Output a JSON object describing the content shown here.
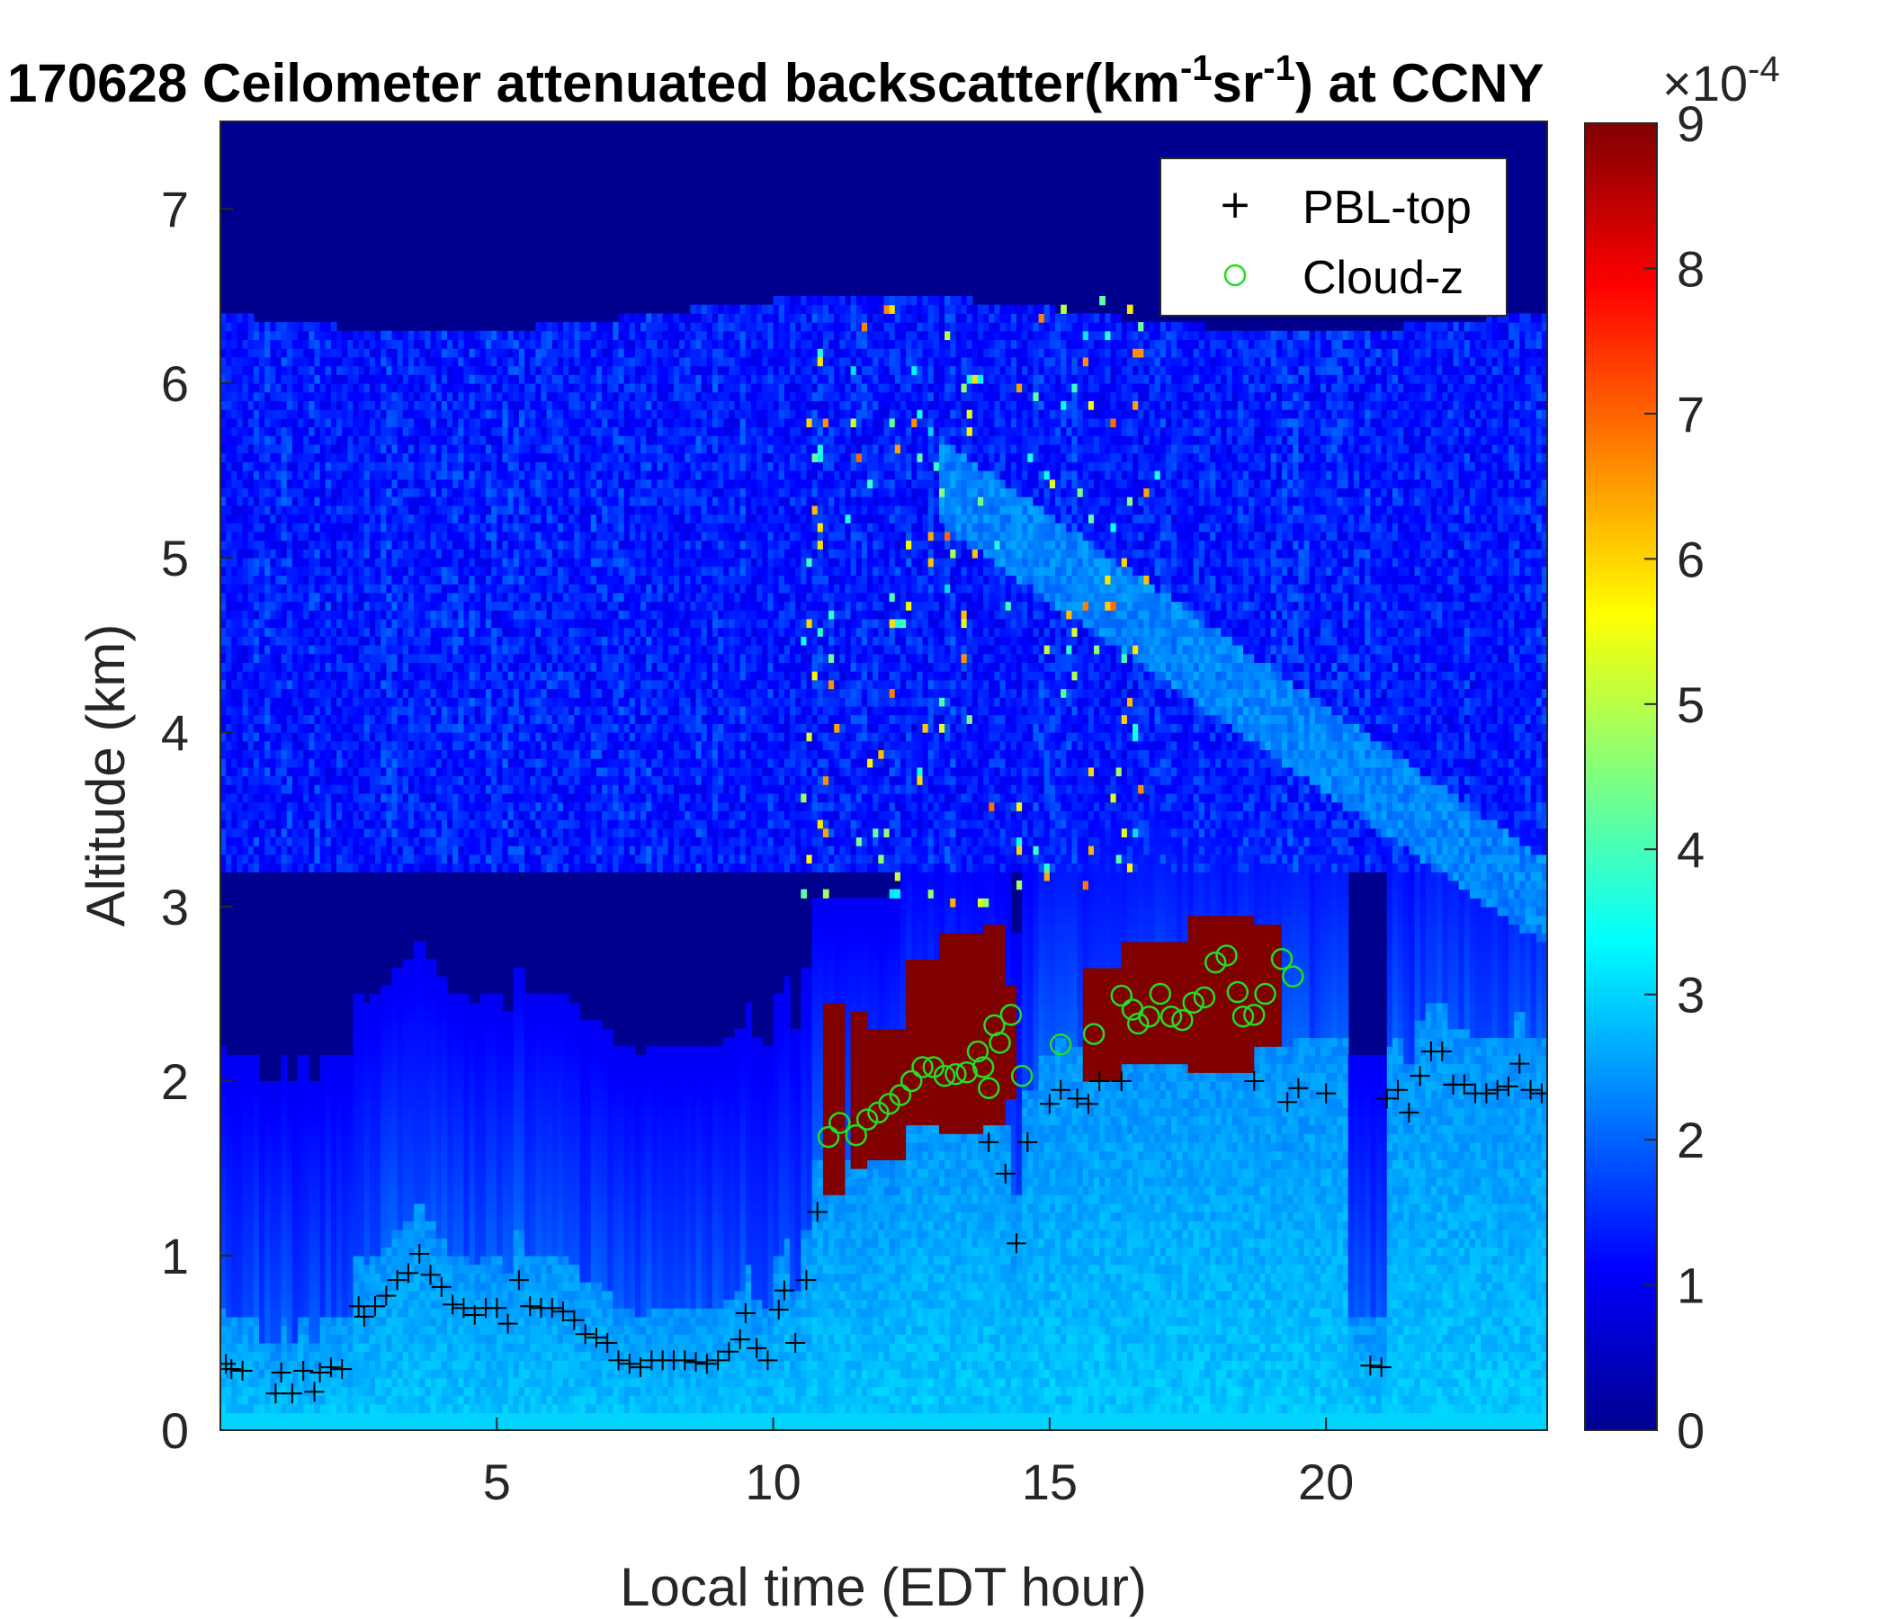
{
  "chart_data": {
    "type": "heatmap",
    "title_prefix": "170628 Ceilometer attenuated backscatter(km",
    "title_sup1": "-1",
    "title_mid": "sr",
    "title_sup2": "-1",
    "title_suffix": ") at CCNY",
    "xlabel": "Local time (EDT hour)",
    "ylabel": "Altitude (km)",
    "xlim": [
      0,
      24
    ],
    "ylim": [
      0,
      7.5
    ],
    "xticks": [
      "5",
      "10",
      "15",
      "20"
    ],
    "yticks": [
      "0",
      "1",
      "2",
      "3",
      "4",
      "5",
      "6",
      "7"
    ],
    "colorbar": {
      "colormap": "jet",
      "range": [
        0,
        9
      ],
      "ticks": [
        "0",
        "1",
        "2",
        "3",
        "4",
        "5",
        "6",
        "7",
        "8",
        "9"
      ],
      "exponent_base": "×10",
      "exponent": "-4"
    },
    "legend": {
      "placement": "top-right",
      "entries": [
        {
          "marker": "+",
          "label": "PBL-top",
          "color": "#000000"
        },
        {
          "marker": "o",
          "label": "Cloud-z",
          "color": "#22dd22"
        }
      ]
    },
    "series": [
      {
        "name": "PBL-top",
        "marker": "+",
        "color": "#000000",
        "points": [
          [
            0.1,
            0.38
          ],
          [
            0.2,
            0.35
          ],
          [
            0.4,
            0.34
          ],
          [
            1.0,
            0.21
          ],
          [
            1.1,
            0.33
          ],
          [
            1.3,
            0.21
          ],
          [
            1.5,
            0.34
          ],
          [
            1.7,
            0.22
          ],
          [
            1.8,
            0.33
          ],
          [
            2.0,
            0.36
          ],
          [
            2.2,
            0.35
          ],
          [
            2.5,
            0.71
          ],
          [
            2.6,
            0.65
          ],
          [
            2.8,
            0.71
          ],
          [
            3.0,
            0.77
          ],
          [
            3.2,
            0.86
          ],
          [
            3.4,
            0.9
          ],
          [
            3.6,
            1.01
          ],
          [
            3.8,
            0.89
          ],
          [
            4.0,
            0.82
          ],
          [
            4.2,
            0.72
          ],
          [
            4.4,
            0.7
          ],
          [
            4.6,
            0.66
          ],
          [
            4.8,
            0.7
          ],
          [
            5.0,
            0.7
          ],
          [
            5.2,
            0.61
          ],
          [
            5.4,
            0.86
          ],
          [
            5.6,
            0.71
          ],
          [
            5.8,
            0.7
          ],
          [
            6.0,
            0.7
          ],
          [
            6.2,
            0.68
          ],
          [
            6.4,
            0.63
          ],
          [
            6.6,
            0.55
          ],
          [
            6.8,
            0.53
          ],
          [
            7.0,
            0.5
          ],
          [
            7.2,
            0.4
          ],
          [
            7.4,
            0.38
          ],
          [
            7.6,
            0.36
          ],
          [
            7.8,
            0.4
          ],
          [
            8.0,
            0.4
          ],
          [
            8.2,
            0.4
          ],
          [
            8.4,
            0.4
          ],
          [
            8.6,
            0.39
          ],
          [
            8.8,
            0.38
          ],
          [
            9.0,
            0.4
          ],
          [
            9.2,
            0.45
          ],
          [
            9.4,
            0.52
          ],
          [
            9.5,
            0.67
          ],
          [
            9.7,
            0.47
          ],
          [
            9.9,
            0.4
          ],
          [
            10.1,
            0.69
          ],
          [
            10.2,
            0.8
          ],
          [
            10.4,
            0.5
          ],
          [
            10.6,
            0.86
          ],
          [
            10.8,
            1.25
          ],
          [
            13.9,
            1.65
          ],
          [
            14.2,
            1.47
          ],
          [
            14.4,
            1.07
          ],
          [
            14.6,
            1.65
          ],
          [
            15.0,
            1.87
          ],
          [
            15.2,
            1.95
          ],
          [
            15.5,
            1.9
          ],
          [
            15.7,
            1.87
          ],
          [
            15.9,
            2.0
          ],
          [
            16.3,
            2.0
          ],
          [
            18.7,
            2.0
          ],
          [
            19.3,
            1.88
          ],
          [
            19.5,
            1.96
          ],
          [
            20.0,
            1.93
          ],
          [
            20.8,
            0.37
          ],
          [
            21.0,
            0.36
          ],
          [
            21.1,
            1.9
          ],
          [
            21.3,
            1.95
          ],
          [
            21.5,
            1.82
          ],
          [
            21.7,
            2.03
          ],
          [
            21.9,
            2.17
          ],
          [
            22.1,
            2.17
          ],
          [
            22.3,
            1.98
          ],
          [
            22.5,
            1.98
          ],
          [
            22.7,
            1.93
          ],
          [
            22.9,
            1.93
          ],
          [
            23.1,
            1.95
          ],
          [
            23.3,
            1.97
          ],
          [
            23.5,
            2.1
          ],
          [
            23.7,
            1.95
          ],
          [
            23.9,
            1.93
          ]
        ]
      },
      {
        "name": "Cloud-z",
        "marker": "o",
        "color": "#22dd22",
        "points": [
          [
            11.0,
            1.68
          ],
          [
            11.2,
            1.76
          ],
          [
            11.5,
            1.69
          ],
          [
            11.7,
            1.78
          ],
          [
            11.9,
            1.82
          ],
          [
            12.1,
            1.87
          ],
          [
            12.3,
            1.92
          ],
          [
            12.5,
            2.0
          ],
          [
            12.7,
            2.08
          ],
          [
            12.9,
            2.08
          ],
          [
            13.1,
            2.03
          ],
          [
            13.3,
            2.04
          ],
          [
            13.5,
            2.05
          ],
          [
            13.7,
            2.17
          ],
          [
            13.8,
            2.08
          ],
          [
            13.9,
            1.96
          ],
          [
            14.0,
            2.32
          ],
          [
            14.1,
            2.22
          ],
          [
            14.3,
            2.38
          ],
          [
            14.5,
            2.03
          ],
          [
            15.2,
            2.21
          ],
          [
            15.8,
            2.27
          ],
          [
            16.3,
            2.49
          ],
          [
            16.5,
            2.41
          ],
          [
            16.6,
            2.33
          ],
          [
            16.8,
            2.37
          ],
          [
            17.0,
            2.5
          ],
          [
            17.2,
            2.37
          ],
          [
            17.4,
            2.35
          ],
          [
            17.6,
            2.45
          ],
          [
            17.8,
            2.48
          ],
          [
            18.0,
            2.68
          ],
          [
            18.2,
            2.72
          ],
          [
            18.4,
            2.51
          ],
          [
            18.5,
            2.37
          ],
          [
            18.7,
            2.38
          ],
          [
            18.9,
            2.5
          ],
          [
            19.2,
            2.7
          ],
          [
            19.4,
            2.6
          ]
        ]
      }
    ]
  }
}
